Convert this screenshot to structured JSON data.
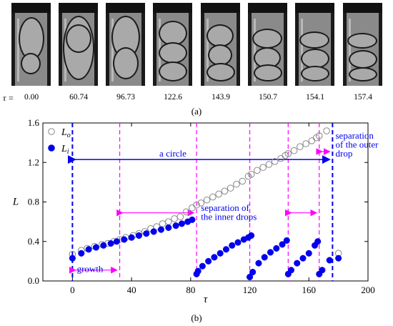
{
  "photo_panel": {
    "tau_symbol": "τ =",
    "times": [
      "0.00",
      "60.74",
      "96.73",
      "122.6",
      "143.9",
      "150.7",
      "154.1",
      "157.4"
    ],
    "caption": "(a)"
  },
  "plot_caption": "(b)",
  "chart_data": {
    "type": "scatter",
    "xlabel": "τ",
    "ylabel": "L",
    "xlim": [
      -20,
      200
    ],
    "ylim": [
      0,
      1.6
    ],
    "x_ticks": [
      "0",
      "40",
      "80",
      "120",
      "160",
      "200"
    ],
    "y_ticks": [
      "0.0",
      "0.4",
      "0.8",
      "1.2",
      "1.6"
    ],
    "legend": {
      "position": "top-left",
      "entries": [
        "L_o",
        "L_i"
      ]
    },
    "series": [
      {
        "name": "L_o",
        "marker": "open-circle",
        "color": "#888888",
        "points": [
          [
            0,
            0.27
          ],
          [
            6,
            0.31
          ],
          [
            10,
            0.33
          ],
          [
            15,
            0.35
          ],
          [
            20,
            0.37
          ],
          [
            24,
            0.38
          ],
          [
            28,
            0.4
          ],
          [
            32,
            0.42
          ],
          [
            36,
            0.44
          ],
          [
            41,
            0.46
          ],
          [
            45,
            0.48
          ],
          [
            49,
            0.5
          ],
          [
            53,
            0.53
          ],
          [
            57,
            0.55
          ],
          [
            61,
            0.58
          ],
          [
            65,
            0.6
          ],
          [
            69,
            0.63
          ],
          [
            73,
            0.65
          ],
          [
            77,
            0.7
          ],
          [
            81,
            0.74
          ],
          [
            84,
            0.77
          ],
          [
            87,
            0.79
          ],
          [
            91,
            0.82
          ],
          [
            95,
            0.85
          ],
          [
            99,
            0.88
          ],
          [
            103,
            0.91
          ],
          [
            107,
            0.94
          ],
          [
            111,
            0.98
          ],
          [
            115,
            1.01
          ],
          [
            119,
            1.06
          ],
          [
            121,
            1.08
          ],
          [
            125,
            1.12
          ],
          [
            129,
            1.15
          ],
          [
            133,
            1.18
          ],
          [
            137,
            1.21
          ],
          [
            141,
            1.24
          ],
          [
            144,
            1.27
          ],
          [
            146,
            1.29
          ],
          [
            150,
            1.32
          ],
          [
            154,
            1.36
          ],
          [
            158,
            1.39
          ],
          [
            162,
            1.42
          ],
          [
            165,
            1.45
          ],
          [
            167,
            1.47
          ],
          [
            172,
            1.52
          ],
          [
            180,
            0.28
          ]
        ]
      },
      {
        "name": "L_i",
        "marker": "filled-circle",
        "color": "#0000ee",
        "points": [
          [
            0,
            0.23
          ],
          [
            6,
            0.28
          ],
          [
            11,
            0.32
          ],
          [
            16,
            0.34
          ],
          [
            21,
            0.36
          ],
          [
            26,
            0.38
          ],
          [
            30,
            0.4
          ],
          [
            35,
            0.42
          ],
          [
            40,
            0.44
          ],
          [
            45,
            0.46
          ],
          [
            50,
            0.48
          ],
          [
            55,
            0.5
          ],
          [
            60,
            0.52
          ],
          [
            65,
            0.54
          ],
          [
            70,
            0.56
          ],
          [
            74,
            0.58
          ],
          [
            78,
            0.6
          ],
          [
            81,
            0.62
          ],
          [
            84,
            0.07
          ],
          [
            85,
            0.1
          ],
          [
            88,
            0.15
          ],
          [
            92,
            0.2
          ],
          [
            96,
            0.24
          ],
          [
            100,
            0.28
          ],
          [
            104,
            0.32
          ],
          [
            108,
            0.36
          ],
          [
            112,
            0.39
          ],
          [
            116,
            0.42
          ],
          [
            119,
            0.44
          ],
          [
            121,
            0.46
          ],
          [
            120,
            0.04
          ],
          [
            122,
            0.09
          ],
          [
            126,
            0.18
          ],
          [
            130,
            0.24
          ],
          [
            134,
            0.29
          ],
          [
            138,
            0.33
          ],
          [
            142,
            0.37
          ],
          [
            145,
            0.41
          ],
          [
            146,
            0.07
          ],
          [
            148,
            0.11
          ],
          [
            152,
            0.18
          ],
          [
            156,
            0.23
          ],
          [
            160,
            0.28
          ],
          [
            164,
            0.36
          ],
          [
            166,
            0.4
          ],
          [
            167,
            0.07
          ],
          [
            169,
            0.11
          ],
          [
            174,
            0.21
          ],
          [
            180,
            0.23
          ]
        ]
      }
    ],
    "vlines": {
      "blue": [
        0,
        176
      ],
      "magenta": [
        32,
        84,
        120,
        146,
        167
      ]
    },
    "annotations": [
      {
        "text": "a circle",
        "color": "#0000ee"
      },
      {
        "text": "separation",
        "color": "#0000ee"
      },
      {
        "text": "of the outer",
        "color": "#0000ee"
      },
      {
        "text": "drop",
        "color": "#0000ee"
      },
      {
        "text": "separation of",
        "color": "#0000ee"
      },
      {
        "text": "the inner drops",
        "color": "#0000ee"
      },
      {
        "text": "growth",
        "color": "#0000ee"
      }
    ]
  }
}
